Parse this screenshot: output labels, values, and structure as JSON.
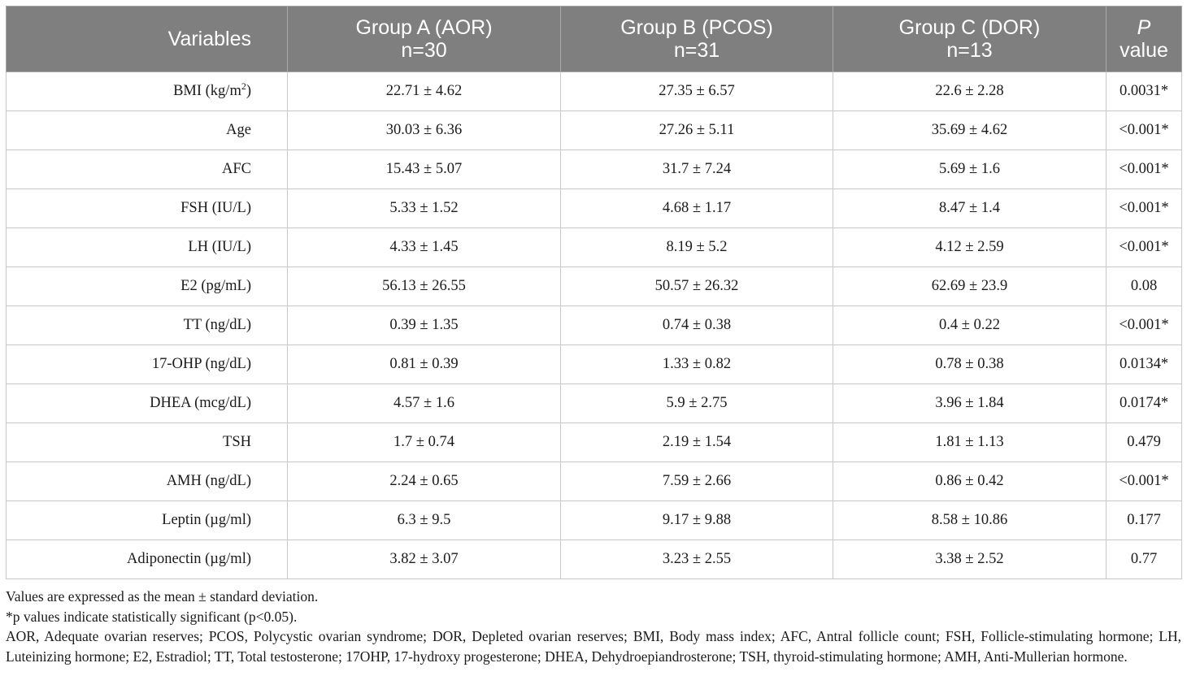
{
  "headers": {
    "variables": "Variables",
    "group_a": {
      "line1": "Group A (AOR)",
      "line2": "n=30"
    },
    "group_b": {
      "line1": "Group B (PCOS)",
      "line2": "n=31"
    },
    "group_c": {
      "line1": "Group C (DOR)",
      "line2": "n=13"
    },
    "p_value": {
      "line1": "P",
      "line2": "value"
    }
  },
  "rows": [
    {
      "variable": "BMI (kg/m",
      "variable_sup": "2",
      "variable_end": ")",
      "a": "22.71 ± 4.62",
      "b": "27.35 ± 6.57",
      "c": "22.6 ± 2.28",
      "p": "0.0031*"
    },
    {
      "variable": "Age",
      "a": "30.03 ± 6.36",
      "b": "27.26 ± 5.11",
      "c": "35.69 ± 4.62",
      "p": "<0.001*"
    },
    {
      "variable": "AFC",
      "a": "15.43 ± 5.07",
      "b": "31.7 ± 7.24",
      "c": "5.69 ± 1.6",
      "p": "<0.001*"
    },
    {
      "variable": "FSH (IU/L)",
      "a": "5.33 ± 1.52",
      "b": "4.68 ± 1.17",
      "c": "8.47 ± 1.4",
      "p": "<0.001*"
    },
    {
      "variable": "LH (IU/L)",
      "a": "4.33 ± 1.45",
      "b": "8.19 ± 5.2",
      "c": "4.12 ± 2.59",
      "p": "<0.001*"
    },
    {
      "variable": "E2 (pg/mL)",
      "a": "56.13 ± 26.55",
      "b": "50.57 ± 26.32",
      "c": "62.69 ± 23.9",
      "p": "0.08"
    },
    {
      "variable": "TT (ng/dL)",
      "a": "0.39 ± 1.35",
      "b": "0.74 ± 0.38",
      "c": "0.4 ± 0.22",
      "p": "<0.001*"
    },
    {
      "variable": "17-OHP (ng/dL)",
      "a": "0.81 ± 0.39",
      "b": "1.33 ± 0.82",
      "c": "0.78 ± 0.38",
      "p": "0.0134*"
    },
    {
      "variable": "DHEA (mcg/dL)",
      "a": "4.57 ± 1.6",
      "b": "5.9 ± 2.75",
      "c": "3.96 ± 1.84",
      "p": "0.0174*"
    },
    {
      "variable": "TSH",
      "a": "1.7 ± 0.74",
      "b": "2.19 ± 1.54",
      "c": "1.81 ± 1.13",
      "p": "0.479"
    },
    {
      "variable": "AMH (ng/dL)",
      "a": "2.24 ± 0.65",
      "b": "7.59 ± 2.66",
      "c": "0.86 ± 0.42",
      "p": "<0.001*"
    },
    {
      "variable": "Leptin (µg/ml)",
      "a": "6.3 ± 9.5",
      "b": "9.17 ± 9.88",
      "c": "8.58 ± 10.86",
      "p": "0.177"
    },
    {
      "variable": "Adiponectin (µg/ml)",
      "a": "3.82 ± 3.07",
      "b": "3.23 ± 2.55",
      "c": "3.38 ± 2.52",
      "p": "0.77"
    }
  ],
  "footnotes": {
    "values_note": "Values are expressed as the mean ± standard deviation.",
    "significance_note": "*p values indicate statistically significant (p<0.05).",
    "abbreviations": "AOR, Adequate ovarian reserves; PCOS, Polycystic ovarian syndrome; DOR, Depleted ovarian reserves; BMI, Body mass index; AFC, Antral follicle count; FSH, Follicle-stimulating hormone; LH, Luteinizing hormone; E2, Estradiol; TT, Total testosterone; 17OHP, 17-hydroxy progesterone; DHEA, Dehydroepiandrosterone; TSH, thyroid-stimulating hormone; AMH, Anti-Mullerian hormone."
  },
  "colors": {
    "header_bg": "#7f7f7f",
    "header_text": "#ffffff",
    "grid": "#c8c8c8"
  }
}
